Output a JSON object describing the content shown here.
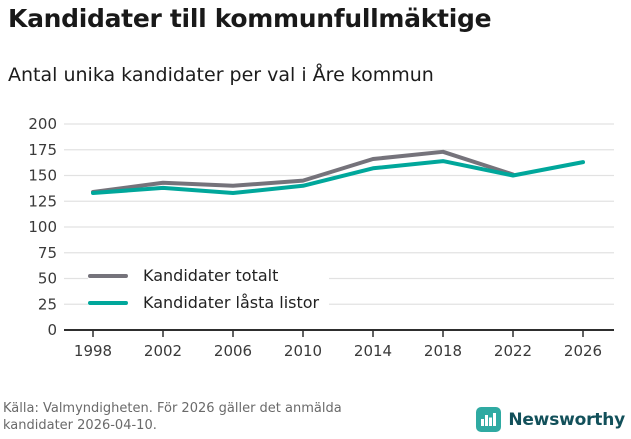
{
  "header": {
    "title": "Kandidater till kommunfullmäktige",
    "subtitle": "Antal unika kandidater per val i Åre kommun"
  },
  "chart_data": {
    "type": "line",
    "x": [
      1998,
      2002,
      2006,
      2010,
      2014,
      2018,
      2022,
      2026
    ],
    "series": [
      {
        "name": "Kandidater totalt",
        "color": "#75737b",
        "values": [
          134,
          143,
          140,
          145,
          166,
          173,
          151,
          null
        ]
      },
      {
        "name": "Kandidater låsta listor",
        "color": "#00a79b",
        "values": [
          133,
          138,
          133,
          140,
          157,
          164,
          150,
          163
        ]
      }
    ],
    "ylim": [
      0,
      200
    ],
    "yticks": [
      0,
      25,
      50,
      75,
      100,
      125,
      150,
      175,
      200
    ],
    "grid": true,
    "legend_position": "inside-bottom-left",
    "axis_color": "#2e2e2e",
    "gridline_color": "#e2e2e2"
  },
  "footer": {
    "source": "Källa: Valmyndigheten. För 2026 gäller det anmälda kandidater 2026-04-10.",
    "logo_text": "Newsworthy",
    "logo_color": "#2faaa2"
  }
}
